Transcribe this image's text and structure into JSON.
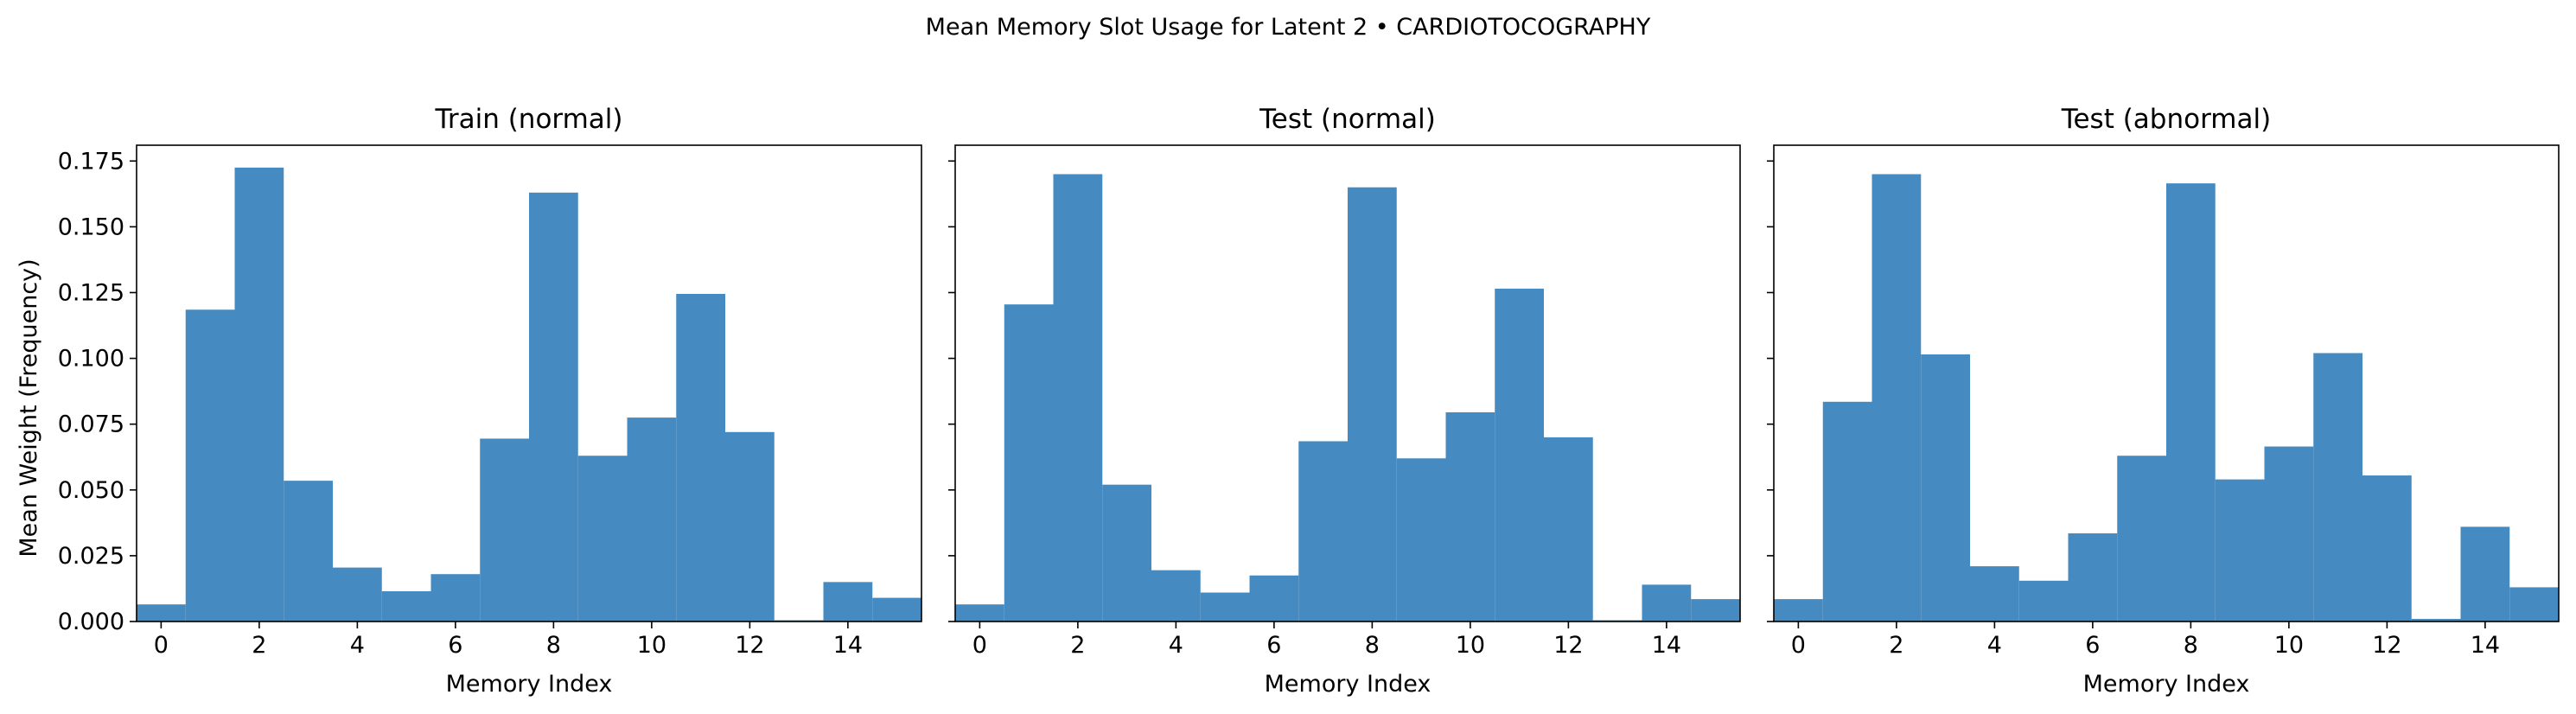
{
  "figure": {
    "suptitle": "Mean Memory Slot Usage for Latent 2 • CARDIOTOCOGRAPHY",
    "bar_color": "#4189c0"
  },
  "chart_data": [
    {
      "type": "bar",
      "title": "Train (normal)",
      "xlabel": "Memory Index",
      "ylabel": "Mean Weight (Frequency)",
      "categories": [
        0,
        1,
        2,
        3,
        4,
        5,
        6,
        7,
        8,
        9,
        10,
        11,
        12,
        13,
        14,
        15
      ],
      "values": [
        0.0065,
        0.1185,
        0.1725,
        0.0535,
        0.0205,
        0.0115,
        0.018,
        0.0695,
        0.163,
        0.063,
        0.0775,
        0.1245,
        0.072,
        0.0005,
        0.015,
        0.009
      ],
      "xlim": [
        -0.5,
        15.5
      ],
      "ylim": [
        0,
        0.181
      ],
      "xticks": [
        0,
        2,
        4,
        6,
        8,
        10,
        12,
        14
      ],
      "yticks": [
        "0.000",
        "0.025",
        "0.050",
        "0.075",
        "0.100",
        "0.125",
        "0.150",
        "0.175"
      ],
      "grid": false
    },
    {
      "type": "bar",
      "title": "Test (normal)",
      "xlabel": "Memory Index",
      "ylabel": "",
      "categories": [
        0,
        1,
        2,
        3,
        4,
        5,
        6,
        7,
        8,
        9,
        10,
        11,
        12,
        13,
        14,
        15
      ],
      "values": [
        0.0065,
        0.1205,
        0.17,
        0.052,
        0.0195,
        0.011,
        0.0175,
        0.0685,
        0.165,
        0.062,
        0.0795,
        0.1265,
        0.07,
        0.0005,
        0.014,
        0.0085
      ],
      "xlim": [
        -0.5,
        15.5
      ],
      "ylim": [
        0,
        0.181
      ],
      "xticks": [
        0,
        2,
        4,
        6,
        8,
        10,
        12,
        14
      ],
      "yticks": [
        "0.000",
        "0.025",
        "0.050",
        "0.075",
        "0.100",
        "0.125",
        "0.150",
        "0.175"
      ],
      "grid": false
    },
    {
      "type": "bar",
      "title": "Test (abnormal)",
      "xlabel": "Memory Index",
      "ylabel": "",
      "categories": [
        0,
        1,
        2,
        3,
        4,
        5,
        6,
        7,
        8,
        9,
        10,
        11,
        12,
        13,
        14,
        15
      ],
      "values": [
        0.0085,
        0.0835,
        0.17,
        0.1015,
        0.021,
        0.0155,
        0.0335,
        0.063,
        0.1665,
        0.054,
        0.0665,
        0.102,
        0.0555,
        0.001,
        0.036,
        0.013
      ],
      "xlim": [
        -0.5,
        15.5
      ],
      "ylim": [
        0,
        0.181
      ],
      "xticks": [
        0,
        2,
        4,
        6,
        8,
        10,
        12,
        14
      ],
      "yticks": [
        "0.000",
        "0.025",
        "0.050",
        "0.075",
        "0.100",
        "0.125",
        "0.150",
        "0.175"
      ],
      "grid": false
    }
  ]
}
